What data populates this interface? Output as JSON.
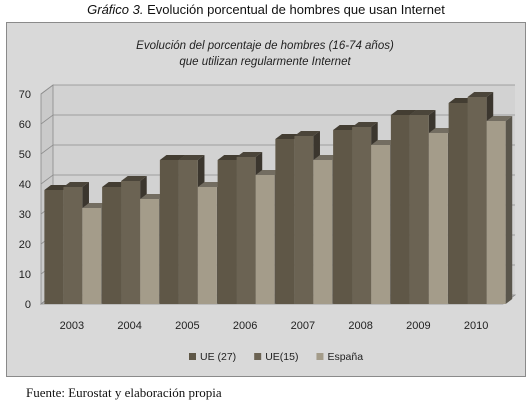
{
  "caption": {
    "number": "Gráfico 3.",
    "text": "Evolución porcentual de hombres que usan Internet"
  },
  "source": "Fuente: Eurostat y elaboración propia",
  "chart_data": {
    "type": "bar",
    "title_lines": [
      "Evolución del porcentaje de hombres (16-74 años)",
      "que utilizan regularmente Internet"
    ],
    "categories": [
      "2003",
      "2004",
      "2005",
      "2006",
      "2007",
      "2008",
      "2009",
      "2010"
    ],
    "series": [
      {
        "name": "UE (27)",
        "values": [
          38,
          39,
          48,
          48,
          55,
          58,
          63,
          67
        ],
        "color": "#5f5747"
      },
      {
        "name": "UE(15)",
        "values": [
          39,
          41,
          48,
          49,
          56,
          59,
          63,
          69
        ],
        "color": "#6b6353"
      },
      {
        "name": "España",
        "values": [
          32,
          35,
          39,
          43,
          48,
          53,
          57,
          61
        ],
        "color": "#a49c8a"
      }
    ],
    "yticks": [
      0,
      10,
      20,
      30,
      40,
      50,
      60,
      70
    ],
    "ylim": [
      0,
      70
    ],
    "legend_position": "bottom",
    "grid": true
  }
}
